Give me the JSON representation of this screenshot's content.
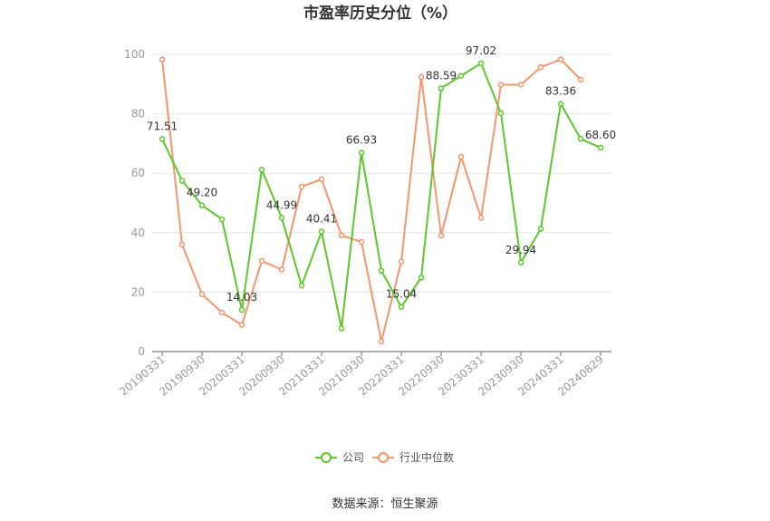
{
  "chart_data": {
    "type": "line",
    "title": "市盈率历史分位（%）",
    "source": "数据来源：恒生聚源",
    "ylim": [
      0,
      100
    ],
    "yticks": [
      "0",
      "20",
      "40",
      "60",
      "80",
      "100"
    ],
    "x_tick_labels": [
      "20190331",
      "20190930",
      "20200331",
      "20200930",
      "20210331",
      "20210930",
      "20220331",
      "20220930",
      "20230331",
      "20230930",
      "20240331",
      "20240829"
    ],
    "x": [
      "20190331",
      "20190630",
      "20190930",
      "20191231",
      "20200331",
      "20200630",
      "20200930",
      "20201231",
      "20210331",
      "20210630",
      "20210930",
      "20211231",
      "20220331",
      "20220630",
      "20220930",
      "20221231",
      "20230331",
      "20230630",
      "20230930",
      "20231231",
      "20240331",
      "20240630",
      "20240829"
    ],
    "grid": true,
    "legend_position": "bottom",
    "series": [
      {
        "name": "公司",
        "color": "#5cc72b",
        "values": [
          71.51,
          57.5,
          49.2,
          44.5,
          14.03,
          61.2,
          44.99,
          22.2,
          40.41,
          7.8,
          66.93,
          27.2,
          15.04,
          24.9,
          88.59,
          92.8,
          97.02,
          80.2,
          29.94,
          41.3,
          83.36,
          71.6,
          68.6
        ],
        "labels": {
          "0": "71.51",
          "2": "49.20",
          "4": "14.03",
          "6": "44.99",
          "8": "40.41",
          "10": "66.93",
          "12": "15.04",
          "14": "88.59",
          "16": "97.02",
          "18": "29.94",
          "20": "83.36",
          "22": "68.60"
        }
      },
      {
        "name": "行业中位数",
        "color": "#f5956b",
        "values": [
          98.3,
          36.0,
          19.3,
          13.1,
          9.0,
          30.5,
          27.6,
          55.5,
          58.0,
          39.1,
          36.9,
          3.4,
          30.3,
          92.4,
          39.0,
          65.6,
          45.0,
          89.8,
          89.8,
          95.7,
          98.3,
          91.5,
          null
        ],
        "labels": {}
      }
    ]
  }
}
